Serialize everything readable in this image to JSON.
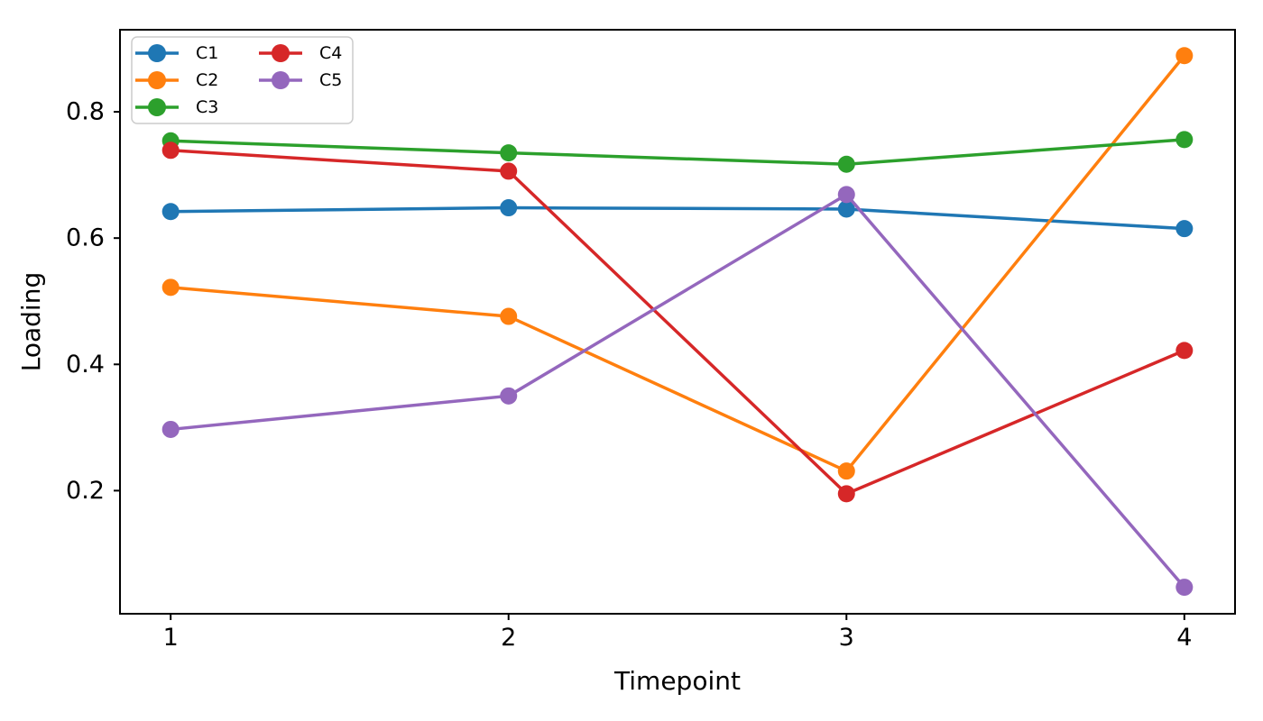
{
  "figure": {
    "background": "#ffffff",
    "frame_color": "#000000"
  },
  "chart_data": {
    "type": "line",
    "title": "",
    "xlabel": "Timepoint",
    "ylabel": "Loading",
    "x": [
      1,
      2,
      3,
      4
    ],
    "xlim": [
      0.85,
      4.15
    ],
    "ylim": [
      0.005,
      0.93
    ],
    "xticks": [
      1,
      2,
      3,
      4
    ],
    "xtick_labels": [
      "1",
      "2",
      "3",
      "4"
    ],
    "yticks": [
      0.2,
      0.4,
      0.6,
      0.8
    ],
    "ytick_labels": [
      "0.2",
      "0.4",
      "0.6",
      "0.8"
    ],
    "grid": false,
    "legend_position": "upper left",
    "legend_ncol": 2,
    "marker": "circle",
    "marker_radius": 9.5,
    "line_width": 3.5,
    "series": [
      {
        "name": "C1",
        "color": "#1f77b4",
        "values": [
          0.642,
          0.648,
          0.646,
          0.615
        ]
      },
      {
        "name": "C2",
        "color": "#ff7f0e",
        "values": [
          0.522,
          0.476,
          0.231,
          0.889
        ]
      },
      {
        "name": "C3",
        "color": "#2ca02c",
        "values": [
          0.754,
          0.735,
          0.717,
          0.756
        ]
      },
      {
        "name": "C4",
        "color": "#d62728",
        "values": [
          0.739,
          0.706,
          0.195,
          0.422
        ]
      },
      {
        "name": "C5",
        "color": "#9467bd",
        "values": [
          0.297,
          0.35,
          0.669,
          0.047
        ]
      }
    ],
    "legend_border_color": "#cccccc"
  }
}
